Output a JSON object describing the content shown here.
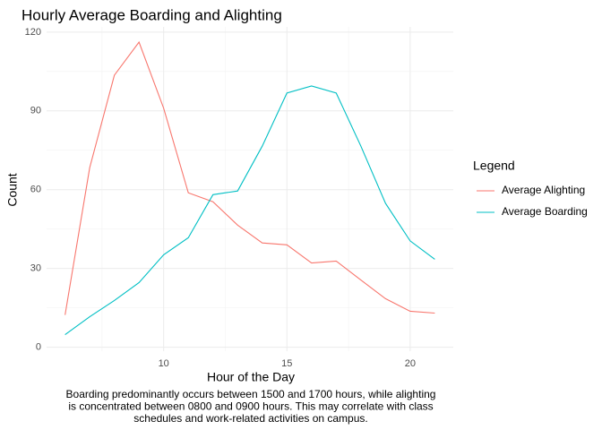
{
  "chart_data": {
    "type": "line",
    "title": "Hourly Average Boarding and Alighting",
    "x_label": "Hour of the Day",
    "y_label": "Count",
    "legend_title": "Legend",
    "caption": [
      "Boarding predominantly occurs between 1500 and 1700 hours, while alighting",
      "is concentrated between 0800 and 0900 hours. This may correlate with class",
      "schedules and work-related activities on campus."
    ],
    "x": [
      6,
      7,
      8,
      9,
      10,
      11,
      12,
      13,
      14,
      15,
      16,
      17,
      18,
      19,
      20,
      21
    ],
    "series": [
      {
        "name": "Average Alighting",
        "color": "#F8766D",
        "values": [
          12.3,
          68.4,
          103.6,
          116.2,
          91,
          58.8,
          55.4,
          46.5,
          39.7,
          39,
          32.1,
          32.8,
          25.6,
          18.5,
          13.7,
          13
        ]
      },
      {
        "name": "Average Boarding",
        "color": "#00BFC4",
        "values": [
          4.8,
          11.6,
          17.8,
          24.6,
          35.2,
          41.7,
          58.1,
          59.5,
          76.6,
          96.8,
          99.5,
          96.8,
          76.6,
          54.8,
          40.5,
          33.5
        ]
      }
    ],
    "xlim": [
      5.25,
      21.75
    ],
    "xticks": [
      10,
      15,
      20
    ],
    "xminor": [
      7.5,
      12.5,
      17.5
    ],
    "ylim": [
      -1.5,
      122
    ],
    "yticks": [
      0,
      30,
      60,
      90,
      120
    ],
    "yminor": [
      15,
      45,
      75,
      105
    ],
    "grid": true,
    "legend": "right"
  }
}
